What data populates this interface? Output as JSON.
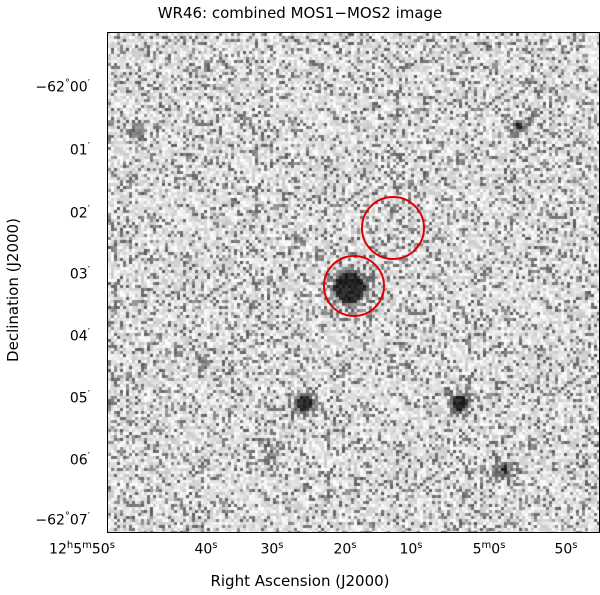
{
  "title": "WR46: combined MOS1−MOS2 image",
  "axes": {
    "xlabel": "Right Ascension (J2000)",
    "ylabel": "Declination (J2000)",
    "x_ticks": [
      {
        "h": "12",
        "m": "5",
        "s": "50",
        "full": true
      },
      {
        "s": "40"
      },
      {
        "s": "30"
      },
      {
        "s": "20"
      },
      {
        "s": "10"
      },
      {
        "h": null,
        "m": "5",
        "s": "0",
        "minute": true
      },
      {
        "s": "50"
      }
    ],
    "y_ticks": [
      {
        "deg": "−62",
        "min": "00",
        "full": true
      },
      {
        "min": "01"
      },
      {
        "min": "02"
      },
      {
        "min": "03"
      },
      {
        "min": "04"
      },
      {
        "min": "05"
      },
      {
        "min": "06"
      },
      {
        "deg": "−62",
        "min": "07",
        "full": true
      }
    ]
  },
  "colors": {
    "region_circle": "#e00000",
    "background": "#d8d8d8"
  },
  "regions": [
    {
      "name": "source-circle"
    },
    {
      "name": "background-circle"
    }
  ]
}
